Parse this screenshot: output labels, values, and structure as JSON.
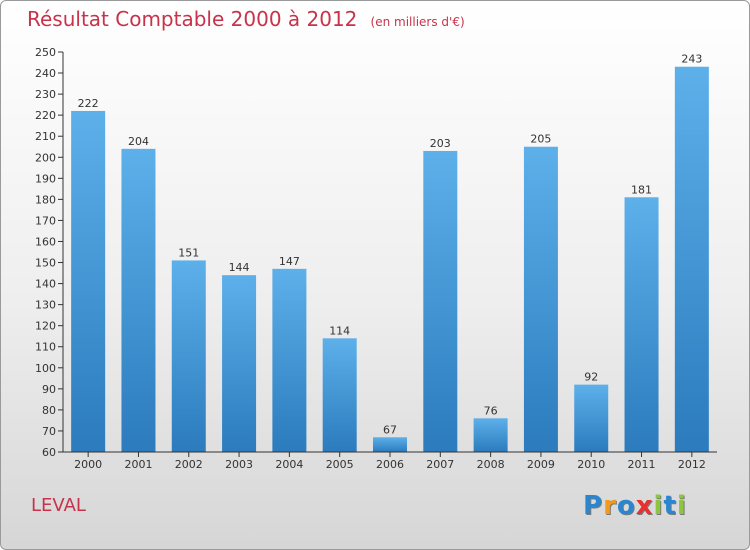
{
  "chart_data": {
    "type": "bar",
    "title": "Résultat Comptable 2000 à 2012",
    "subtitle": "(en milliers d'€)",
    "categories": [
      "2000",
      "2001",
      "2002",
      "2003",
      "2004",
      "2005",
      "2006",
      "2007",
      "2008",
      "2009",
      "2010",
      "2011",
      "2012"
    ],
    "values": [
      222,
      204,
      151,
      144,
      147,
      114,
      67,
      203,
      76,
      205,
      92,
      181,
      243
    ],
    "ylim": [
      60,
      250
    ],
    "ytick_step": 10,
    "xlabel": "",
    "ylabel": "",
    "grid": false,
    "colors": {
      "bar_light": "#5db0ea",
      "bar_dark": "#2b7bbd",
      "text": "#333333"
    }
  },
  "footer": {
    "commune": "LEVAL",
    "logo_letters": [
      "P",
      "r",
      "o",
      "x",
      "i",
      "t",
      "i"
    ],
    "logo_colors": [
      "#2b86d0",
      "#f29a1c",
      "#2b86d0",
      "#e8312f",
      "#8cc63f",
      "#2b86d0",
      "#8cc63f"
    ]
  }
}
